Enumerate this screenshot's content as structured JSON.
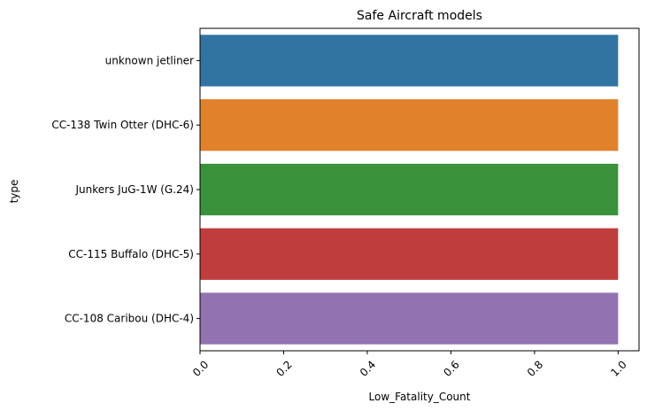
{
  "chart_data": {
    "type": "bar",
    "orientation": "horizontal",
    "title": "Safe Aircraft models",
    "xlabel": "Low_Fatality_Count",
    "ylabel": "type",
    "categories": [
      "unknown jetliner",
      "CC-138 Twin Otter (DHC-6)",
      "Junkers JuG-1W (G.24)",
      "CC-115 Buffalo (DHC-5)",
      "CC-108 Caribou (DHC-4)"
    ],
    "values": [
      1,
      1,
      1,
      1,
      1
    ],
    "colors": [
      "#3274a1",
      "#e1812c",
      "#3a923a",
      "#c03d3e",
      "#9372b2"
    ],
    "xlim": [
      0,
      1.05
    ],
    "xticks": [
      0.0,
      0.2,
      0.4,
      0.6,
      0.8,
      1.0
    ],
    "xtick_labels": [
      "0.0",
      "0.2",
      "0.4",
      "0.6",
      "0.8",
      "1.0"
    ],
    "xtick_rotation": 45,
    "grid": false
  }
}
